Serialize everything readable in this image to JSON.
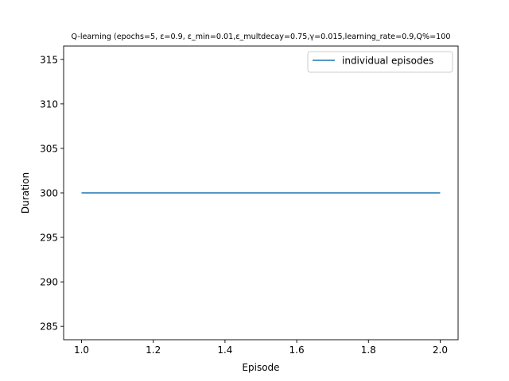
{
  "chart_data": {
    "type": "line",
    "title": "Q-learning (epochs=5, ε=0.9, ε_min=0.01,ε_multdecay=0.75,γ=0.015,learning_rate=0.9,Q%=100",
    "xlabel": "Episode",
    "ylabel": "Duration",
    "xlim": [
      0.95,
      2.05
    ],
    "ylim": [
      283.5,
      316.5
    ],
    "xticks": [
      1.0,
      1.2,
      1.4,
      1.6,
      1.8,
      2.0
    ],
    "xtick_labels": [
      "1.0",
      "1.2",
      "1.4",
      "1.6",
      "1.8",
      "2.0"
    ],
    "yticks": [
      285,
      290,
      295,
      300,
      305,
      310,
      315
    ],
    "ytick_labels": [
      "285",
      "290",
      "295",
      "300",
      "305",
      "310",
      "315"
    ],
    "grid": false,
    "legend_position": "top-right",
    "series": [
      {
        "name": "individual episodes",
        "color": "#1f77b4",
        "x": [
          1,
          2
        ],
        "y": [
          300,
          300
        ]
      }
    ]
  }
}
